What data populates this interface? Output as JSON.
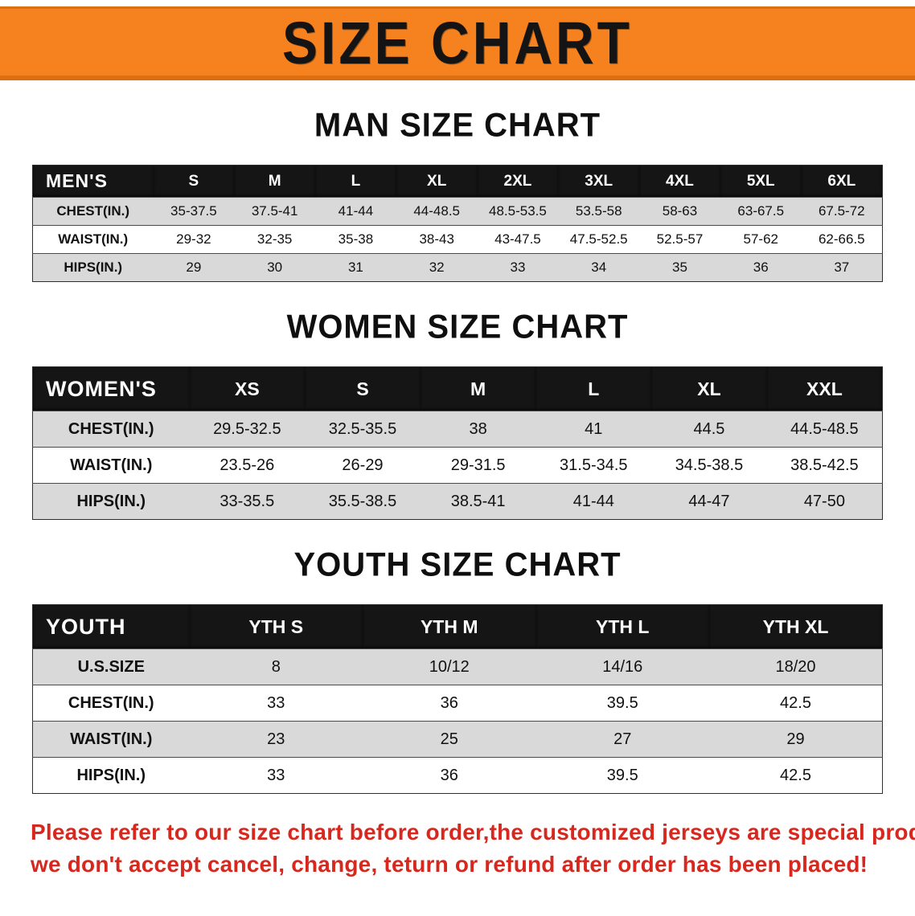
{
  "banner": {
    "title": "SIZE CHART"
  },
  "sections": [
    {
      "id": "man-size-chart",
      "heading": "MAN SIZE CHART",
      "table": {
        "corner_label": "MEN'S",
        "columns": [
          "S",
          "M",
          "L",
          "XL",
          "2XL",
          "3XL",
          "4XL",
          "5XL",
          "6XL"
        ],
        "rows": [
          {
            "label": "CHEST(IN.)",
            "values": [
              "35-37.5",
              "37.5-41",
              "41-44",
              "44-48.5",
              "48.5-53.5",
              "53.5-58",
              "58-63",
              "63-67.5",
              "67.5-72"
            ]
          },
          {
            "label": "WAIST(IN.)",
            "values": [
              "29-32",
              "32-35",
              "35-38",
              "38-43",
              "43-47.5",
              "47.5-52.5",
              "52.5-57",
              "57-62",
              "62-66.5"
            ]
          },
          {
            "label": "HIPS(IN.)",
            "values": [
              "29",
              "30",
              "31",
              "32",
              "33",
              "34",
              "35",
              "36",
              "37"
            ]
          }
        ]
      }
    },
    {
      "id": "women-size-chart",
      "heading": "WOMEN SIZE CHART",
      "table": {
        "corner_label": "WOMEN'S",
        "columns": [
          "XS",
          "S",
          "M",
          "L",
          "XL",
          "XXL"
        ],
        "rows": [
          {
            "label": "CHEST(IN.)",
            "values": [
              "29.5-32.5",
              "32.5-35.5",
              "38",
              "41",
              "44.5",
              "44.5-48.5"
            ]
          },
          {
            "label": "WAIST(IN.)",
            "values": [
              "23.5-26",
              "26-29",
              "29-31.5",
              "31.5-34.5",
              "34.5-38.5",
              "38.5-42.5"
            ]
          },
          {
            "label": "HIPS(IN.)",
            "values": [
              "33-35.5",
              "35.5-38.5",
              "38.5-41",
              "41-44",
              "44-47",
              "47-50"
            ]
          }
        ]
      }
    },
    {
      "id": "youth-size-chart",
      "heading": "YOUTH SIZE CHART",
      "table": {
        "corner_label": "YOUTH",
        "columns": [
          "YTH S",
          "YTH M",
          "YTH L",
          "YTH XL"
        ],
        "rows": [
          {
            "label": "U.S.SIZE",
            "values": [
              "8",
              "10/12",
              "14/16",
              "18/20"
            ]
          },
          {
            "label": "CHEST(IN.)",
            "values": [
              "33",
              "36",
              "39.5",
              "42.5"
            ]
          },
          {
            "label": "WAIST(IN.)",
            "values": [
              "23",
              "25",
              "27",
              "29"
            ]
          },
          {
            "label": "HIPS(IN.)",
            "values": [
              "33",
              "36",
              "39.5",
              "42.5"
            ]
          }
        ]
      }
    }
  ],
  "footer": {
    "line1": "Please refer to our size chart before order,the customized jerseys are special products,",
    "line2": "we don't accept cancel, change, teturn or refund after order has been placed!"
  },
  "colors": {
    "banner_orange": "#f5821f",
    "header_bg": "#151515",
    "row_stripe": "#d9d9d9",
    "notice_red": "#d6281e"
  }
}
